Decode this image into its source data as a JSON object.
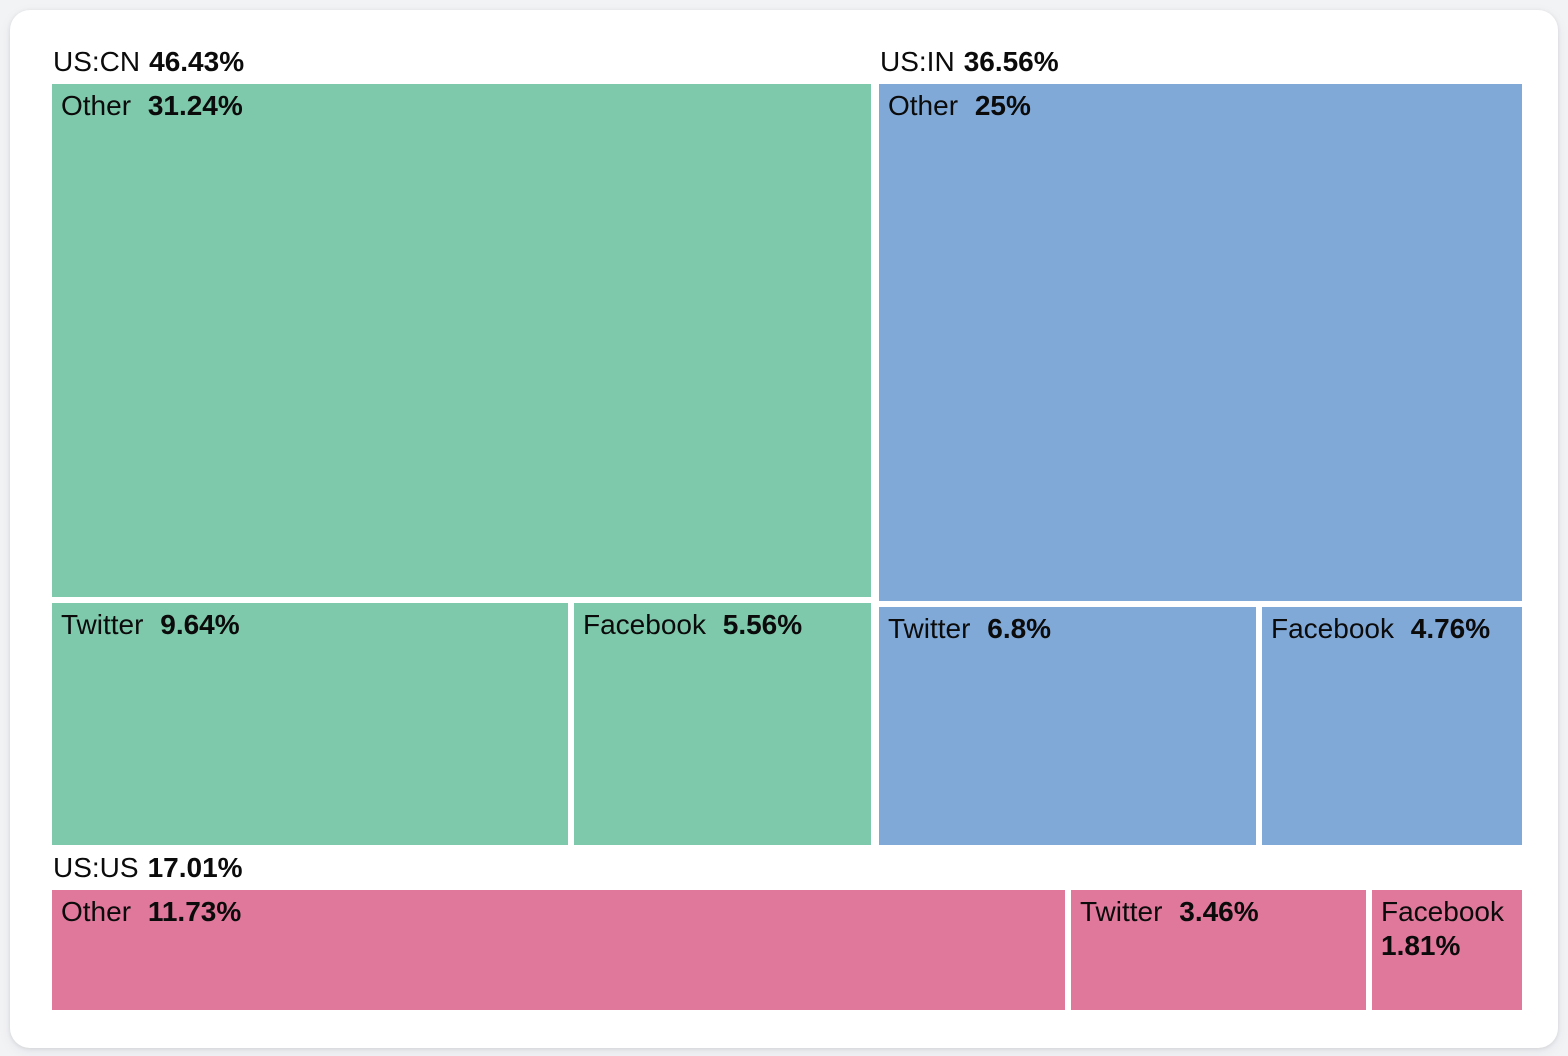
{
  "page": {
    "background_color": "#f2f3f5",
    "card_background": "#ffffff",
    "text_color": "#0b0b0b"
  },
  "chart_data": {
    "type": "treemap",
    "title": "",
    "legend": "none",
    "label_format": "name + bold percent",
    "groups": [
      {
        "name": "US:CN",
        "pct": "46.43%",
        "value": 46.43,
        "color": "#7ec8ab",
        "children": [
          {
            "name": "Other",
            "pct": "31.24%",
            "value": 31.24
          },
          {
            "name": "Twitter",
            "pct": "9.64%",
            "value": 9.64
          },
          {
            "name": "Facebook",
            "pct": "5.56%",
            "value": 5.56
          }
        ]
      },
      {
        "name": "US:IN",
        "pct": "36.56%",
        "value": 36.56,
        "color": "#81a9d8",
        "children": [
          {
            "name": "Other",
            "pct": "25%",
            "value": 25
          },
          {
            "name": "Twitter",
            "pct": "6.8%",
            "value": 6.8
          },
          {
            "name": "Facebook",
            "pct": "4.76%",
            "value": 4.76
          }
        ]
      },
      {
        "name": "US:US",
        "pct": "17.01%",
        "value": 17.01,
        "color": "#e0789b",
        "children": [
          {
            "name": "Other",
            "pct": "11.73%",
            "value": 11.73
          },
          {
            "name": "Twitter",
            "pct": "3.46%",
            "value": 3.46
          },
          {
            "name": "Facebook",
            "pct": "1.81%",
            "value": 1.81
          }
        ]
      }
    ]
  }
}
